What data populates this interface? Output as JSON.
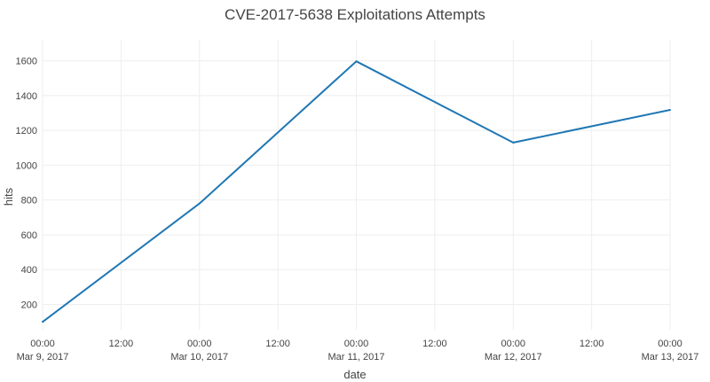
{
  "chart_data": {
    "type": "line",
    "title": "CVE-2017-5638 Exploitations Attempts",
    "xlabel": "date",
    "ylabel": "hits",
    "series": [
      {
        "x": [
          "2017-03-09 00:00",
          "2017-03-10 00:00",
          "2017-03-11 00:00",
          "2017-03-12 00:00",
          "2017-03-13 00:00"
        ],
        "values": [
          100,
          780,
          1597,
          1130,
          1318
        ]
      }
    ],
    "xlim": [
      "2017-03-09 00:00",
      "2017-03-13 00:00"
    ],
    "ylim": [
      55,
      1720
    ],
    "x_ticks": [
      {
        "value": "2017-03-09 00:00",
        "time": "00:00",
        "date": "Mar 9, 2017"
      },
      {
        "value": "2017-03-09 12:00",
        "time": "12:00",
        "date": ""
      },
      {
        "value": "2017-03-10 00:00",
        "time": "00:00",
        "date": "Mar 10, 2017"
      },
      {
        "value": "2017-03-10 12:00",
        "time": "12:00",
        "date": ""
      },
      {
        "value": "2017-03-11 00:00",
        "time": "00:00",
        "date": "Mar 11, 2017"
      },
      {
        "value": "2017-03-11 12:00",
        "time": "12:00",
        "date": ""
      },
      {
        "value": "2017-03-12 00:00",
        "time": "00:00",
        "date": "Mar 12, 2017"
      },
      {
        "value": "2017-03-12 12:00",
        "time": "12:00",
        "date": ""
      },
      {
        "value": "2017-03-13 00:00",
        "time": "00:00",
        "date": "Mar 13, 2017"
      }
    ],
    "y_ticks": [
      200,
      400,
      600,
      800,
      1000,
      1200,
      1400,
      1600
    ],
    "grid": true,
    "line_color": "#1f77b4"
  }
}
